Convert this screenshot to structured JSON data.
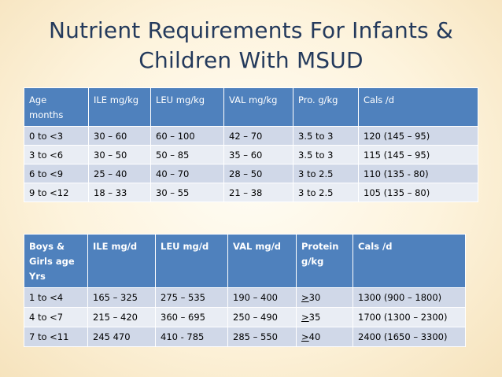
{
  "title": {
    "line1": "Nutrient Requirements For Infants &",
    "line2": "Children With MSUD"
  },
  "infants_table": {
    "headers": [
      "Age months",
      "ILE mg/kg",
      "LEU mg/kg",
      "VAL mg/kg",
      "Pro. g/kg",
      "Cals /d"
    ],
    "rows": [
      [
        "0 to <3",
        "30 – 60",
        "60 – 100",
        "42 – 70",
        "3.5 to 3",
        "120 (145 – 95)"
      ],
      [
        "3 to <6",
        "30 – 50",
        "50 – 85",
        "35 – 60",
        "3.5 to 3",
        "115 (145 – 95)"
      ],
      [
        "6 to <9",
        "25 – 40",
        "40 – 70",
        "28 – 50",
        "3 to 2.5",
        "110 (135  -  80)"
      ],
      [
        "9 to <12",
        "18 – 33",
        "30 – 55",
        "21 – 38",
        "3 to 2.5",
        "105 (135 – 80)"
      ]
    ]
  },
  "children_table": {
    "headers": [
      "Boys & Girls age Yrs",
      "ILE mg/d",
      "LEU mg/d",
      "VAL mg/d",
      "Protein g/kg",
      "Cals /d"
    ],
    "rows": [
      {
        "age": "1 to <4",
        "ile": "165 – 325",
        "leu": "275 – 535",
        "val": "190 – 400",
        "protein_symbol": ">",
        "protein": "30",
        "cals": "1300 (900 – 1800)"
      },
      {
        "age": "4 to <7",
        "ile": "215 – 420",
        "leu": "360 – 695",
        "val": "250 – 490",
        "protein_symbol": ">",
        "protein": "35",
        "cals": "1700 (1300 – 2300)"
      },
      {
        "age": "7 to <11",
        "ile": "245 470",
        "leu": "410 - 785",
        "val": "285 – 550",
        "protein_symbol": ">",
        "protein": "40",
        "cals": "2400 (1650 – 3300)"
      }
    ]
  }
}
